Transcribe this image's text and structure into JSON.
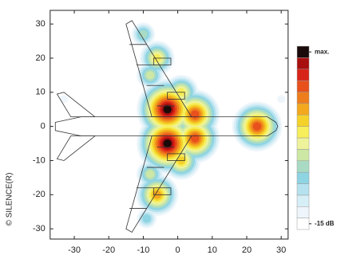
{
  "chart_data": {
    "type": "heatmap",
    "copyright": "© SILENCE(R)",
    "xlim": [
      -37,
      32
    ],
    "ylim": [
      -33,
      34
    ],
    "xticks": [
      -30,
      -20,
      -10,
      0,
      10,
      20,
      30
    ],
    "yticks": [
      -30,
      -20,
      -10,
      0,
      10,
      20,
      30
    ],
    "clim": [
      -15,
      0
    ],
    "cticks": [
      {
        "value": 0,
        "label": "max."
      },
      {
        "value": -15,
        "label": "-15 dB"
      }
    ],
    "colorscale": [
      "#ffffff",
      "#eef6fb",
      "#d6eef6",
      "#b5e2ee",
      "#8ed4e3",
      "#a9dbc4",
      "#cde8a4",
      "#eef29a",
      "#f6ee5a",
      "#f5d22a",
      "#f3a81e",
      "#ee7d1d",
      "#e8501c",
      "#d82418",
      "#a81010",
      "#1a0a0a"
    ],
    "sources": [
      {
        "x": -3,
        "y": 5,
        "level": 0
      },
      {
        "x": -3,
        "y": -5,
        "level": 0
      },
      {
        "x": 5,
        "y": 3.5,
        "level": -3
      },
      {
        "x": 5,
        "y": -3.5,
        "level": -3
      },
      {
        "x": 23,
        "y": 0,
        "level": -3
      },
      {
        "x": -6,
        "y": -20,
        "level": -5
      },
      {
        "x": -6,
        "y": 20,
        "level": -7
      },
      {
        "x": 1,
        "y": 10,
        "level": -7
      },
      {
        "x": 1,
        "y": -10,
        "level": -6
      },
      {
        "x": -8,
        "y": 15,
        "level": -9
      },
      {
        "x": -8,
        "y": -14,
        "level": -9
      },
      {
        "x": -10,
        "y": 27,
        "level": -10
      },
      {
        "x": -9,
        "y": -27,
        "level": -11
      },
      {
        "x": -33,
        "y": 8,
        "level": -14
      },
      {
        "x": 30,
        "y": 8,
        "level": -14
      }
    ]
  }
}
